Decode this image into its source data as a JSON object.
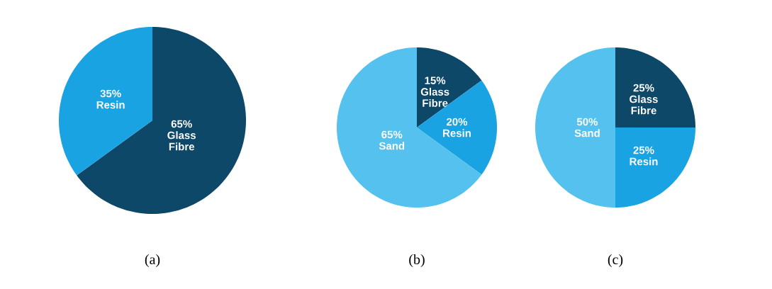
{
  "chart_data": [
    {
      "type": "pie",
      "title": "(a)",
      "categories": [
        "Glass Fibre",
        "Resin"
      ],
      "values": [
        65,
        35
      ],
      "colors": [
        "#0d4868",
        "#1aa3e3"
      ],
      "value_labels": [
        "65%",
        "35%"
      ]
    },
    {
      "type": "pie",
      "title": "(b)",
      "categories": [
        "Glass Fibre",
        "Resin",
        "Sand"
      ],
      "values": [
        15,
        20,
        65
      ],
      "colors": [
        "#0d4868",
        "#1aa3e3",
        "#55c1ee"
      ],
      "value_labels": [
        "15%",
        "20%",
        "65%"
      ]
    },
    {
      "type": "pie",
      "title": "(c)",
      "categories": [
        "Glass Fibre",
        "Resin",
        "Sand"
      ],
      "values": [
        25,
        25,
        50
      ],
      "colors": [
        "#0d4868",
        "#1aa3e3",
        "#55c1ee"
      ],
      "value_labels": [
        "25%",
        "25%",
        "50%"
      ]
    }
  ]
}
